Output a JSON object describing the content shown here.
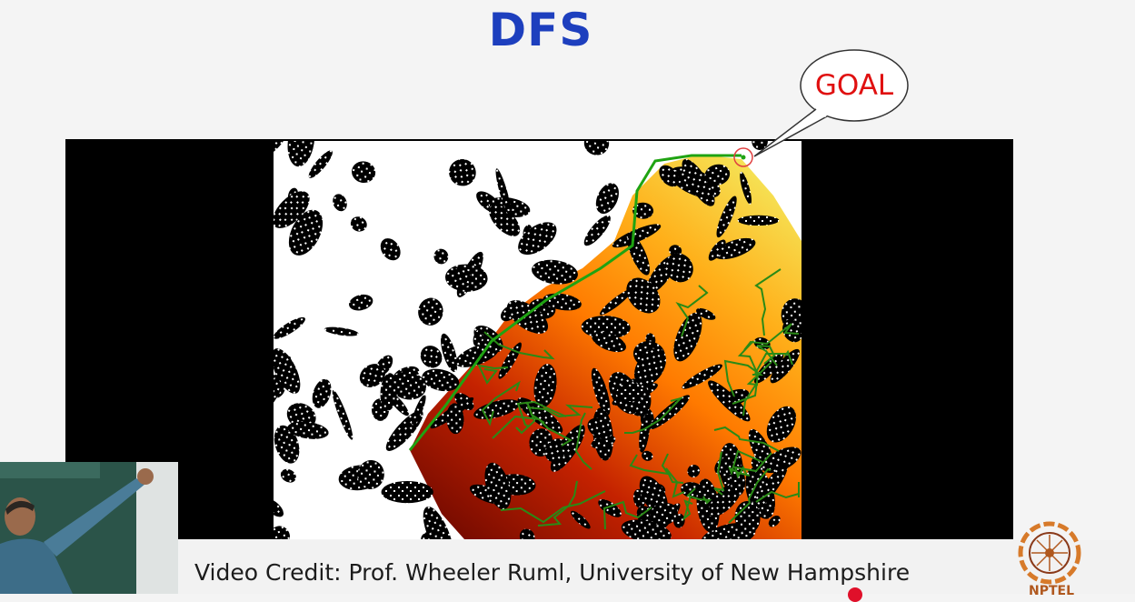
{
  "slide": {
    "title": "DFS",
    "callout_label": "GOAL",
    "caption": "Video Credit: Prof. Wheeler Ruml, University of New Hampshire",
    "logo_text": "NPTEL"
  },
  "colors": {
    "title": "#1d3fbe",
    "callout_text": "#e01010",
    "search_path": "#1fa312",
    "explored_far": "#b01500",
    "explored_mid": "#ff8a00",
    "explored_near": "#f2ef5a"
  }
}
